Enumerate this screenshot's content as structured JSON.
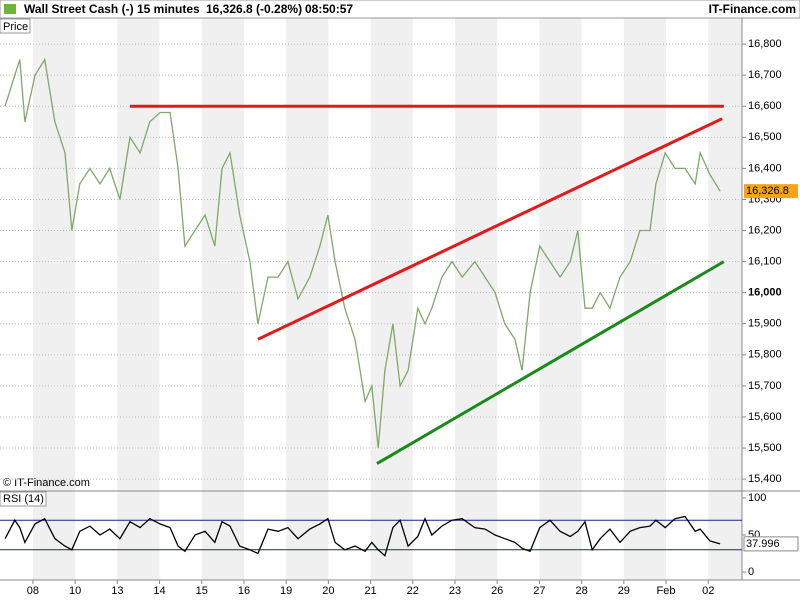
{
  "header": {
    "title": "Wall Street Cash (-)",
    "interval": "15 minutes",
    "quote": "16,326.8 (-0.28%)",
    "time": "08:50:57",
    "source": "IT-Finance.com"
  },
  "chart_data": [
    {
      "type": "line",
      "panel_label": "Price",
      "credit": "© IT-Finance.com",
      "xlim": [
        -0.78,
        16.8
      ],
      "xticks": [
        {
          "value": 0,
          "label": "08"
        },
        {
          "value": 1,
          "label": "10"
        },
        {
          "value": 2,
          "label": "13"
        },
        {
          "value": 3,
          "label": "14"
        },
        {
          "value": 4,
          "label": "15"
        },
        {
          "value": 5,
          "label": "16"
        },
        {
          "value": 6,
          "label": "19"
        },
        {
          "value": 7,
          "label": "20"
        },
        {
          "value": 8,
          "label": "21"
        },
        {
          "value": 9,
          "label": "22"
        },
        {
          "value": 10,
          "label": "23"
        },
        {
          "value": 11,
          "label": "26"
        },
        {
          "value": 12,
          "label": "27"
        },
        {
          "value": 13,
          "label": "28"
        },
        {
          "value": 14,
          "label": "29"
        },
        {
          "value": 15,
          "label": "Feb"
        },
        {
          "value": 16,
          "label": "02"
        }
      ],
      "ylim": [
        15365,
        16884
      ],
      "yticks": [
        {
          "value": 15400,
          "label": "15,400"
        },
        {
          "value": 15500,
          "label": "15,500"
        },
        {
          "value": 15600,
          "label": "15,600"
        },
        {
          "value": 15700,
          "label": "15,700"
        },
        {
          "value": 15800,
          "label": "15,800"
        },
        {
          "value": 15900,
          "label": "15,900"
        },
        {
          "value": 16000,
          "label": "16,000"
        },
        {
          "value": 16100,
          "label": "16,100"
        },
        {
          "value": 16200,
          "label": "16,200"
        },
        {
          "value": 16300,
          "label": "16,300"
        },
        {
          "value": 16400,
          "label": "16,400"
        },
        {
          "value": 16500,
          "label": "16,500"
        },
        {
          "value": 16600,
          "label": "16,600"
        },
        {
          "value": 16700,
          "label": "16,700"
        },
        {
          "value": 16800,
          "label": "16,800"
        }
      ],
      "grid": true,
      "series": [
        {
          "name": "Price",
          "color": "#7fa86a",
          "x": [
            -0.66,
            -0.43,
            -0.31,
            -0.19,
            0.05,
            0.28,
            0.52,
            0.76,
            0.92,
            1.11,
            1.35,
            1.59,
            1.82,
            2.06,
            2.3,
            2.54,
            2.77,
            3.01,
            3.25,
            3.44,
            3.6,
            3.84,
            4.08,
            4.31,
            4.48,
            4.67,
            4.9,
            5.14,
            5.33,
            5.57,
            5.81,
            6.04,
            6.28,
            6.56,
            6.8,
            6.99,
            7.16,
            7.39,
            7.63,
            7.87,
            8.03,
            8.18,
            8.34,
            8.53,
            8.7,
            8.89,
            9.12,
            9.29,
            9.45,
            9.69,
            9.93,
            10.17,
            10.47,
            10.71,
            10.95,
            11.18,
            11.42,
            11.59,
            11.78,
            12.01,
            12.25,
            12.49,
            12.73,
            12.91,
            13.08,
            13.25,
            13.44,
            13.67,
            13.91,
            14.15,
            14.38,
            14.62,
            14.76,
            14.98,
            15.21,
            15.45,
            15.69,
            15.81,
            16.04,
            16.28
          ],
          "values": [
            16600,
            16700,
            16750,
            16550,
            16700,
            16750,
            16550,
            16450,
            16200,
            16350,
            16400,
            16350,
            16400,
            16300,
            16500,
            16450,
            16550,
            16580,
            16580,
            16400,
            16150,
            16200,
            16250,
            16150,
            16400,
            16450,
            16250,
            16100,
            15900,
            16050,
            16050,
            16100,
            15980,
            16050,
            16150,
            16250,
            16100,
            15950,
            15850,
            15650,
            15700,
            15500,
            15750,
            15900,
            15700,
            15750,
            15950,
            15900,
            15950,
            16050,
            16100,
            16050,
            16100,
            16050,
            16000,
            15900,
            15850,
            15750,
            16000,
            16150,
            16100,
            16050,
            16100,
            16200,
            15950,
            15950,
            16000,
            15950,
            16050,
            16100,
            16200,
            16200,
            16350,
            16450,
            16400,
            16400,
            16350,
            16450,
            16380,
            16326.8
          ],
          "last_value_label": "16,326.8",
          "last_label_color": "#f5a31a"
        }
      ],
      "lines": [
        {
          "color": "#e31a1c",
          "x": [
            2.3,
            16.37
          ],
          "y": [
            16600,
            16600
          ]
        },
        {
          "color": "#e31a1c",
          "x": [
            5.33,
            16.33
          ],
          "y": [
            15850,
            16560
          ]
        },
        {
          "color": "#1a8a1a",
          "x": [
            8.15,
            16.37
          ],
          "y": [
            15450,
            16100
          ]
        }
      ]
    },
    {
      "type": "line",
      "panel_label": "RSI (14)",
      "xlim": [
        -0.78,
        16.8
      ],
      "ylim": [
        -10.8,
        108.1
      ],
      "yticks": [
        0,
        50,
        100
      ],
      "bands": [
        30,
        70
      ],
      "band_color": "#1a237e",
      "series": [
        {
          "name": "RSI",
          "color": "#000000",
          "x": [
            -0.66,
            -0.43,
            -0.31,
            -0.19,
            0.05,
            0.28,
            0.52,
            0.76,
            0.92,
            1.11,
            1.35,
            1.59,
            1.82,
            2.06,
            2.3,
            2.54,
            2.77,
            3.01,
            3.25,
            3.44,
            3.6,
            3.84,
            4.08,
            4.31,
            4.48,
            4.67,
            4.9,
            5.14,
            5.33,
            5.57,
            5.81,
            6.04,
            6.28,
            6.56,
            6.8,
            6.99,
            7.16,
            7.39,
            7.63,
            7.87,
            8.03,
            8.18,
            8.34,
            8.53,
            8.7,
            8.89,
            9.12,
            9.29,
            9.45,
            9.69,
            9.93,
            10.17,
            10.47,
            10.71,
            10.95,
            11.18,
            11.42,
            11.59,
            11.78,
            12.01,
            12.25,
            12.49,
            12.73,
            12.91,
            13.08,
            13.25,
            13.44,
            13.67,
            13.91,
            14.15,
            14.38,
            14.62,
            14.76,
            14.98,
            15.21,
            15.45,
            15.69,
            15.81,
            16.04,
            16.28
          ],
          "values": [
            45,
            70,
            60,
            40,
            65,
            72,
            45,
            35,
            30,
            55,
            62,
            50,
            58,
            45,
            68,
            60,
            72,
            65,
            60,
            35,
            28,
            50,
            55,
            40,
            68,
            62,
            35,
            30,
            25,
            58,
            55,
            60,
            45,
            58,
            65,
            72,
            40,
            30,
            35,
            28,
            40,
            30,
            22,
            60,
            70,
            35,
            48,
            72,
            50,
            62,
            70,
            72,
            60,
            58,
            50,
            45,
            40,
            32,
            28,
            60,
            70,
            55,
            48,
            55,
            68,
            30,
            45,
            58,
            40,
            55,
            60,
            62,
            70,
            60,
            72,
            75,
            55,
            58,
            42,
            37.996
          ]
        }
      ]
    }
  ]
}
